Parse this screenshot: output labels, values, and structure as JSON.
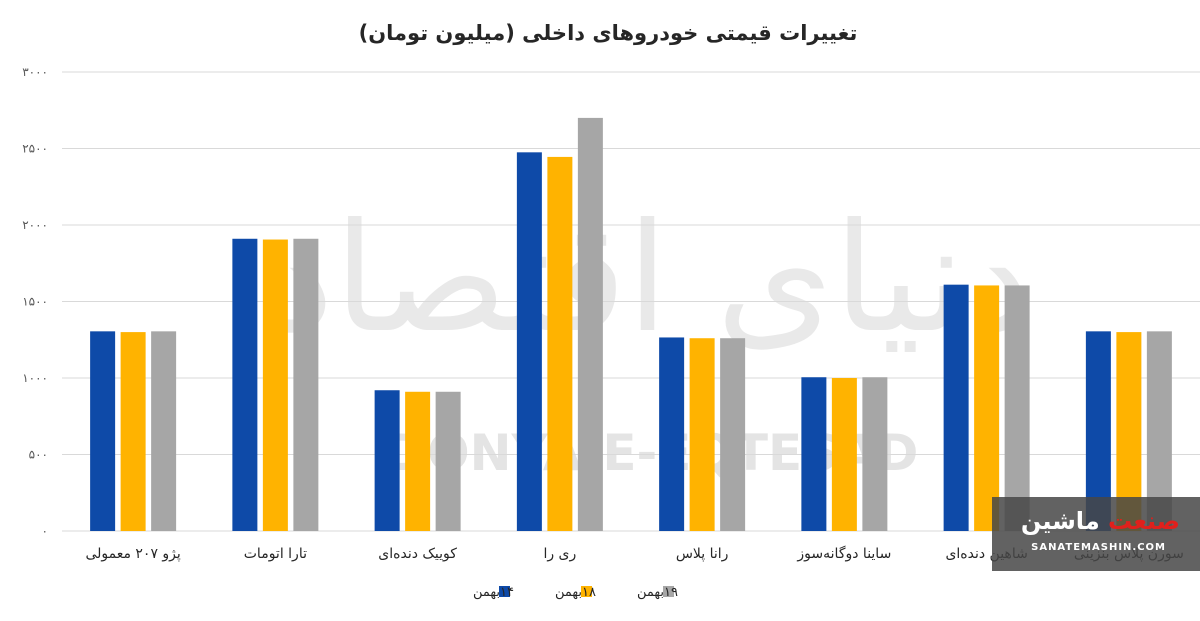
{
  "chart_data": {
    "type": "bar",
    "title": "تغییرات قیمتی خودروهای داخلی (میلیون تومان)",
    "categories": [
      "پژو ۲۰۷ معمولی",
      "تارا اتومات",
      "کوییک دنده‌ای",
      "ری را",
      "رانا پلاس",
      "ساینا دوگانه‌سوز",
      "شاهین دنده‌ای",
      "سورن پلاس بنزینی"
    ],
    "series": [
      {
        "name": "۱۴بهمن",
        "color": "#0e4aa8",
        "values": [
          1305,
          1910,
          920,
          2475,
          1265,
          1005,
          1610,
          1305
        ]
      },
      {
        "name": "۱۸بهمن",
        "color": "#ffb300",
        "values": [
          1300,
          1905,
          910,
          2445,
          1260,
          1000,
          1605,
          1300
        ]
      },
      {
        "name": "۱۹بهمن",
        "color": "#a6a6a6",
        "values": [
          1305,
          1910,
          910,
          2700,
          1260,
          1005,
          1605,
          1305
        ]
      }
    ],
    "yticks": [
      {
        "value": 0,
        "label": "۰"
      },
      {
        "value": 500,
        "label": "۵۰۰"
      },
      {
        "value": 1000,
        "label": "۱۰۰۰"
      },
      {
        "value": 1500,
        "label": "۱۵۰۰"
      },
      {
        "value": 2000,
        "label": "۲۰۰۰"
      },
      {
        "value": 2500,
        "label": "۲۵۰۰"
      },
      {
        "value": 3000,
        "label": "۳۰۰۰"
      }
    ],
    "ylim": [
      0,
      3000
    ],
    "grid": true,
    "legend_position": "bottom-center"
  },
  "watermark": {
    "latin": "DONYA-E-EQTESAD",
    "persian": "دنیای اقتصاد"
  },
  "brand": {
    "red_part": "صنعت",
    "white_part": "ماشین",
    "url": "SANATEMASHIN.COM"
  }
}
